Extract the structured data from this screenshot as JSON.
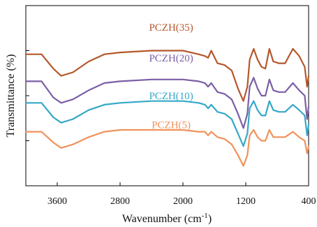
{
  "chart_data": {
    "type": "line",
    "title": "",
    "xlabel": "Wavenumber (cm-1)",
    "xlabel_main": "Wavenumber (cm",
    "xlabel_sup": "-1",
    "xlabel_end": ")",
    "ylabel": "Transmittance (%)",
    "xlim": [
      4000,
      400
    ],
    "x_reversed": true,
    "xticks": [
      3600,
      2800,
      2000,
      1200,
      400
    ],
    "xtick_labels": [
      "3600",
      "2800",
      "2000",
      "1200",
      "400"
    ],
    "y_units": "arbitrary (stacked, offset)",
    "ylim": [
      0,
      100
    ],
    "yticks": [
      25,
      50,
      75
    ],
    "grid": false,
    "legend": "labels placed directly on curves",
    "series": [
      {
        "name": "PCZH(35)",
        "color": "#B5572B",
        "x": [
          4000,
          3800,
          3650,
          3550,
          3400,
          3200,
          3000,
          2800,
          2400,
          2000,
          1800,
          1720,
          1680,
          1640,
          1560,
          1470,
          1380,
          1300,
          1230,
          1180,
          1150,
          1100,
          1050,
          1000,
          950,
          900,
          850,
          780,
          700,
          600,
          520,
          450,
          420,
          400
        ],
        "y": [
          73,
          73,
          65,
          61,
          63,
          69,
          73,
          74,
          75,
          75,
          73,
          72,
          71,
          75,
          68,
          67,
          64,
          54,
          47,
          55,
          70,
          76,
          70,
          66,
          65,
          76,
          69,
          68,
          68,
          76,
          72,
          66,
          55,
          61
        ]
      },
      {
        "name": "PCZH(20)",
        "color": "#7B5EA7",
        "x": [
          4000,
          3800,
          3650,
          3550,
          3400,
          3200,
          3000,
          2800,
          2400,
          2000,
          1800,
          1720,
          1680,
          1640,
          1560,
          1470,
          1380,
          1300,
          1230,
          1180,
          1150,
          1100,
          1050,
          1000,
          950,
          900,
          850,
          780,
          700,
          600,
          520,
          450,
          420,
          400
        ],
        "y": [
          58,
          58,
          49,
          46,
          48,
          53,
          57,
          58,
          59,
          59,
          58,
          57,
          55,
          57,
          52,
          51,
          48,
          40,
          32,
          40,
          55,
          60,
          54,
          50,
          50,
          59,
          53,
          52,
          52,
          57,
          53,
          50,
          37,
          44
        ]
      },
      {
        "name": "PCZH(10)",
        "color": "#34A8C8",
        "x": [
          4000,
          3800,
          3650,
          3550,
          3400,
          3200,
          3000,
          2800,
          2400,
          2000,
          1800,
          1720,
          1680,
          1640,
          1560,
          1470,
          1380,
          1300,
          1230,
          1180,
          1150,
          1100,
          1050,
          1000,
          950,
          900,
          850,
          780,
          700,
          600,
          520,
          450,
          420,
          400
        ],
        "y": [
          46,
          46,
          38,
          35,
          37,
          42,
          45,
          46,
          47,
          47,
          46,
          45,
          43,
          45,
          41,
          40,
          37,
          29,
          22,
          29,
          43,
          47,
          42,
          39,
          39,
          47,
          42,
          41,
          41,
          45,
          42,
          39,
          28,
          34
        ]
      },
      {
        "name": "PCZH(5)",
        "color": "#F0925A",
        "x": [
          4000,
          3800,
          3650,
          3550,
          3400,
          3200,
          3000,
          2800,
          2400,
          2000,
          1800,
          1720,
          1680,
          1640,
          1560,
          1470,
          1380,
          1300,
          1230,
          1180,
          1150,
          1100,
          1050,
          1000,
          950,
          900,
          850,
          780,
          700,
          600,
          520,
          450,
          420,
          400
        ],
        "y": [
          30,
          30,
          24,
          21,
          23,
          27,
          30,
          31,
          31,
          31,
          30,
          30,
          28,
          30,
          27,
          26,
          23,
          17,
          11,
          17,
          28,
          31,
          27,
          25,
          25,
          31,
          27,
          27,
          27,
          30,
          27,
          25,
          18,
          22
        ]
      }
    ],
    "annotations": [
      {
        "text": "PCZH(35)",
        "series": "PCZH(35)",
        "x": 2150,
        "y": 86
      },
      {
        "text": "PCZH(20)",
        "series": "PCZH(20)",
        "x": 2150,
        "y": 69
      },
      {
        "text": "PCZH(10)",
        "series": "PCZH(10)",
        "x": 2150,
        "y": 48
      },
      {
        "text": "PCZH(5)",
        "series": "PCZH(5)",
        "x": 2150,
        "y": 32
      }
    ]
  }
}
